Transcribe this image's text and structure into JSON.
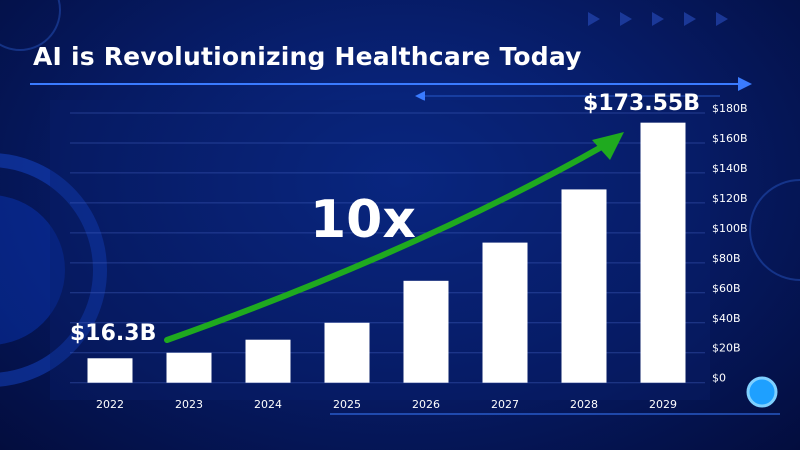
{
  "title": "AI is Revolutionizing Healthcare Today",
  "colors": {
    "background": "#061a62",
    "bars": "#ffffff",
    "arrow": "#1faa1f",
    "accent": "#3a7bff"
  },
  "chart_data": {
    "type": "bar",
    "title": "AI is Revolutionizing Healthcare Today",
    "categories": [
      "2022",
      "2023",
      "2024",
      "2025",
      "2026",
      "2027",
      "2028",
      "2029"
    ],
    "values": [
      16.3,
      20,
      28.7,
      40,
      68,
      93.5,
      129,
      173.55
    ],
    "unit": "billion USD",
    "ylim": [
      0,
      180
    ],
    "yticks": [
      "$0",
      "$20B",
      "$40B",
      "$60B",
      "$80B",
      "$100B",
      "$120B",
      "$140B",
      "$160B",
      "$180B"
    ],
    "yaxis_position": "right",
    "grid": true,
    "annotations": {
      "start_label": "$16.3B",
      "end_label": "$173.55B",
      "growth_label": "10x"
    }
  }
}
